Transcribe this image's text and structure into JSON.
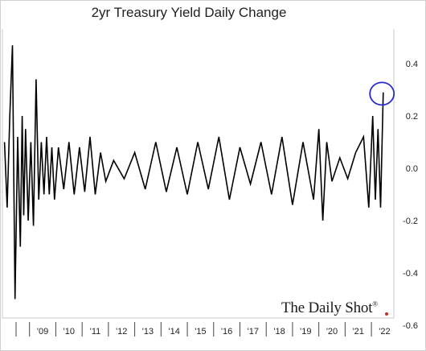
{
  "chart_data": {
    "type": "line",
    "title": "2yr Treasury Yield Daily Change",
    "xlabel": "",
    "ylabel": "",
    "x_tick_labels": [
      "'09",
      "'10",
      "'11",
      "'12",
      "'13",
      "'14",
      "'15",
      "'16",
      "'17",
      "'18",
      "'19",
      "'20",
      "'21",
      "'22"
    ],
    "x_range": [
      2008.0,
      2022.7
    ],
    "y_ticks": [
      0.4,
      0.2,
      0.0,
      -0.2,
      -0.4,
      -0.6
    ],
    "y_tick_labels": [
      "0.4",
      "0.2",
      "0.0",
      "-0.2",
      "-0.4",
      "-0.6"
    ],
    "ylim": [
      -0.6,
      0.5
    ],
    "y_axis_position": "right",
    "grid": false,
    "series": [
      {
        "color": "#000000",
        "x": [
          2008.05,
          2008.15,
          2008.25,
          2008.35,
          2008.45,
          2008.55,
          2008.65,
          2008.72,
          2008.78,
          2008.85,
          2008.95,
          2009.05,
          2009.15,
          2009.25,
          2009.35,
          2009.45,
          2009.55,
          2009.65,
          2009.75,
          2009.85,
          2009.95,
          2010.1,
          2010.3,
          2010.5,
          2010.7,
          2010.9,
          2011.1,
          2011.3,
          2011.5,
          2011.7,
          2011.9,
          2012.2,
          2012.6,
          2013.0,
          2013.4,
          2013.8,
          2014.2,
          2014.6,
          2015.0,
          2015.4,
          2015.8,
          2016.2,
          2016.6,
          2017.0,
          2017.4,
          2017.8,
          2018.2,
          2018.6,
          2019.0,
          2019.4,
          2019.8,
          2020.0,
          2020.15,
          2020.3,
          2020.5,
          2020.8,
          2021.1,
          2021.4,
          2021.7,
          2021.9,
          2022.05,
          2022.15,
          2022.25,
          2022.35,
          2022.45
        ],
        "values": [
          0.1,
          -0.15,
          0.2,
          0.47,
          -0.5,
          0.12,
          -0.3,
          0.2,
          -0.18,
          0.15,
          -0.2,
          0.1,
          -0.22,
          0.34,
          -0.12,
          0.1,
          -0.1,
          0.12,
          -0.1,
          0.08,
          -0.12,
          0.08,
          -0.08,
          0.1,
          -0.1,
          0.08,
          -0.09,
          0.12,
          -0.1,
          0.06,
          -0.05,
          0.03,
          -0.04,
          0.06,
          -0.08,
          0.1,
          -0.09,
          0.08,
          -0.1,
          0.1,
          -0.08,
          0.12,
          -0.12,
          0.08,
          -0.06,
          0.1,
          -0.1,
          0.12,
          -0.14,
          0.1,
          -0.12,
          0.15,
          -0.2,
          0.1,
          -0.05,
          0.04,
          -0.04,
          0.06,
          0.12,
          -0.15,
          0.2,
          -0.12,
          0.15,
          -0.15,
          0.29
        ]
      }
    ],
    "annotations": [
      {
        "type": "circle",
        "color": "#2a2acc",
        "x": 2022.4,
        "y": 0.285
      }
    ]
  },
  "watermark": {
    "text": "The Daily Shot",
    "mark": "®",
    "dot_color": "#c0302a"
  }
}
